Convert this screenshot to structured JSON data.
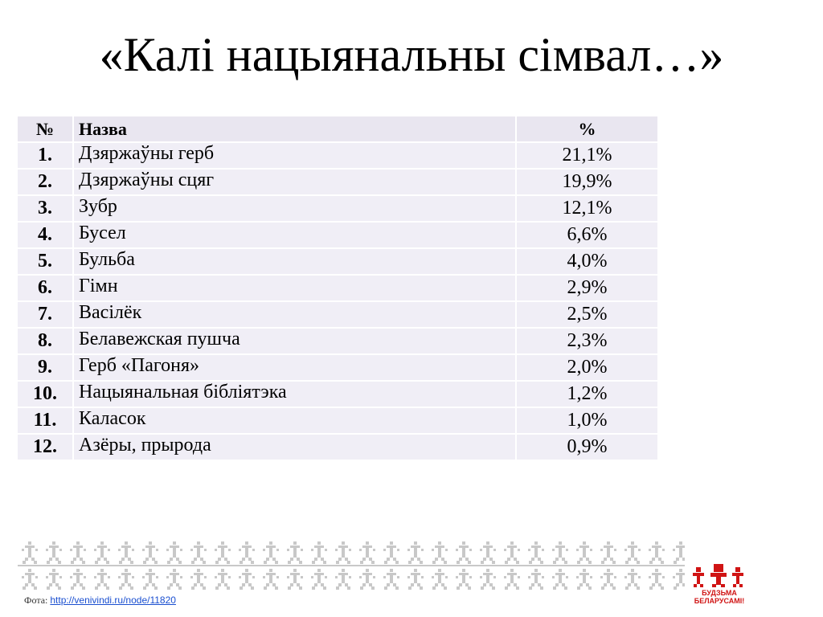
{
  "title": "«Калі нацыянальны сімвал…»",
  "table": {
    "headers": {
      "num": "№",
      "name": "Назва",
      "pct": "%"
    },
    "rows": [
      {
        "num": "1.",
        "name": "Дзяржаўны герб",
        "pct": "21,1%"
      },
      {
        "num": "2.",
        "name": "Дзяржаўны сцяг",
        "pct": "19,9%"
      },
      {
        "num": "3.",
        "name": "Зубр",
        "pct": "12,1%"
      },
      {
        "num": "4.",
        "name": "Бусел",
        "pct": "6,6%"
      },
      {
        "num": "5.",
        "name": "Бульба",
        "pct": "4,0%"
      },
      {
        "num": "6.",
        "name": "Гімн",
        "pct": "2,9%"
      },
      {
        "num": "7.",
        "name": "Васілёк",
        "pct": "2,5%"
      },
      {
        "num": "8.",
        "name": "Белавежская пушча",
        "pct": "2,3%"
      },
      {
        "num": "9.",
        "name": "Герб «Пагоня»",
        "pct": "2,0%"
      },
      {
        "num": "10.",
        "name": "Нацыянальная бібліятэка",
        "pct": "1,2%"
      },
      {
        "num": "11.",
        "name": "Каласок",
        "pct": "1,0%"
      },
      {
        "num": "12.",
        "name": "Азёры, прырода",
        "pct": "0,9%"
      }
    ]
  },
  "footer": {
    "credit_label": "Фота:",
    "credit_link": "http://venivindi.ru/node/11820",
    "logo_line1": "БУДЗЬМА",
    "logo_line2": "БЕЛАРУСАМІ!"
  },
  "colors": {
    "cell_bg": "#f0eef6",
    "logo_red": "#d01414",
    "ornament": "#c8c8c8"
  },
  "icons": {
    "ornament": "belarusian-folk-pattern-icon",
    "logo": "budzma-logo-icon"
  }
}
